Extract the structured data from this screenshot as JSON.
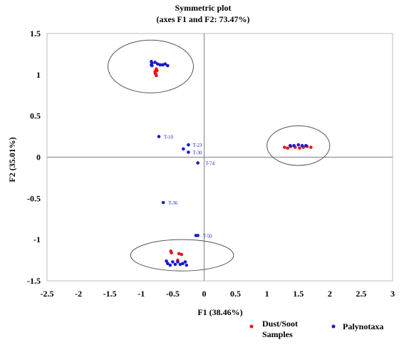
{
  "chart_data": {
    "type": "scatter",
    "title": "Symmetric plot",
    "subtitle": "(axes F1 and F2: 73.47%)",
    "xlabel": "F1 (38.46%)",
    "ylabel": "F2 (35.01%)",
    "xlim": [
      -2.5,
      3
    ],
    "ylim": [
      -1.5,
      1.5
    ],
    "xticks": [
      "-2.5",
      "-2",
      "-1.5",
      "-1",
      "-0.5",
      "0",
      "0.5",
      "1",
      "1.5",
      "2",
      "2.5",
      "3"
    ],
    "yticks": [
      "1.5",
      "1",
      "0.5",
      "0",
      "-0.5",
      "-1",
      "-1.5"
    ],
    "grid": false,
    "legend_position": "bottom",
    "colors": {
      "dust": "#e8161b",
      "palyno": "#1a1acc",
      "ellipse": "#555555"
    },
    "series": [
      {
        "name": "Dust/Soot Samples",
        "color": "#e8161b",
        "points": [
          {
            "x": -0.78,
            "y": 1.04
          },
          {
            "x": -0.76,
            "y": 1.07
          },
          {
            "x": -0.77,
            "y": 1.01
          },
          {
            "x": -0.75,
            "y": 1.05
          },
          {
            "x": -0.78,
            "y": 1.02
          },
          {
            "x": -0.76,
            "y": 0.99
          },
          {
            "x": 1.28,
            "y": 0.12
          },
          {
            "x": 1.33,
            "y": 0.11
          },
          {
            "x": 1.38,
            "y": 0.13
          },
          {
            "x": 1.45,
            "y": 0.12
          },
          {
            "x": 1.52,
            "y": 0.11
          },
          {
            "x": 1.58,
            "y": 0.12
          },
          {
            "x": 1.64,
            "y": 0.13
          },
          {
            "x": 1.7,
            "y": 0.12
          },
          {
            "x": -0.53,
            "y": -1.14
          },
          {
            "x": -0.52,
            "y": -1.16
          },
          {
            "x": -0.4,
            "y": -1.17
          },
          {
            "x": -0.36,
            "y": -1.18
          },
          {
            "x": -0.42,
            "y": -1.25
          }
        ]
      },
      {
        "name": "Palynotaxa",
        "color": "#1a1acc",
        "points": [
          {
            "x": -0.84,
            "y": 1.16
          },
          {
            "x": -0.83,
            "y": 1.14
          },
          {
            "x": -0.84,
            "y": 1.12
          },
          {
            "x": -0.83,
            "y": 1.11
          },
          {
            "x": -0.78,
            "y": 1.15
          },
          {
            "x": -0.74,
            "y": 1.13
          },
          {
            "x": -0.7,
            "y": 1.12
          },
          {
            "x": -0.66,
            "y": 1.12
          },
          {
            "x": -0.62,
            "y": 1.13
          },
          {
            "x": -0.58,
            "y": 1.11
          },
          {
            "x": -0.72,
            "y": 0.25
          },
          {
            "x": -0.25,
            "y": 0.15
          },
          {
            "x": -0.33,
            "y": 0.1
          },
          {
            "x": -0.25,
            "y": 0.06
          },
          {
            "x": -0.1,
            "y": -0.07
          },
          {
            "x": -0.65,
            "y": -0.55
          },
          {
            "x": -0.13,
            "y": -0.95
          },
          {
            "x": -0.1,
            "y": -0.95
          },
          {
            "x": 1.37,
            "y": 0.14
          },
          {
            "x": 1.43,
            "y": 0.14
          },
          {
            "x": 1.5,
            "y": 0.15
          },
          {
            "x": 1.56,
            "y": 0.14
          },
          {
            "x": 1.62,
            "y": 0.14
          },
          {
            "x": -0.6,
            "y": -1.26
          },
          {
            "x": -0.58,
            "y": -1.29
          },
          {
            "x": -0.54,
            "y": -1.31
          },
          {
            "x": -0.5,
            "y": -1.27
          },
          {
            "x": -0.46,
            "y": -1.3
          },
          {
            "x": -0.42,
            "y": -1.27
          },
          {
            "x": -0.38,
            "y": -1.3
          },
          {
            "x": -0.34,
            "y": -1.29
          },
          {
            "x": -0.3,
            "y": -1.27
          },
          {
            "x": -0.28,
            "y": -1.31
          }
        ]
      }
    ],
    "point_labels": [
      {
        "text": "T-10",
        "x": -0.64,
        "y": 0.25,
        "series": "Palynotaxa"
      },
      {
        "text": "T-23",
        "x": -0.18,
        "y": 0.15,
        "series": "Palynotaxa"
      },
      {
        "text": "T-30",
        "x": -0.18,
        "y": 0.06,
        "series": "Palynotaxa"
      },
      {
        "text": "T-74",
        "x": 0.02,
        "y": -0.07,
        "series": "Palynotaxa"
      },
      {
        "text": "T-36",
        "x": -0.57,
        "y": -0.55,
        "series": "Palynotaxa"
      },
      {
        "text": "T-50",
        "x": -0.02,
        "y": -0.95,
        "series": "Palynotaxa"
      }
    ],
    "clusters": [
      {
        "cx": -0.85,
        "cy": 1.1,
        "rx": 0.68,
        "ry": 0.32
      },
      {
        "cx": 1.5,
        "cy": 0.14,
        "rx": 0.5,
        "ry": 0.24
      },
      {
        "cx": -0.35,
        "cy": -1.19,
        "rx": 0.82,
        "ry": 0.19
      }
    ]
  }
}
